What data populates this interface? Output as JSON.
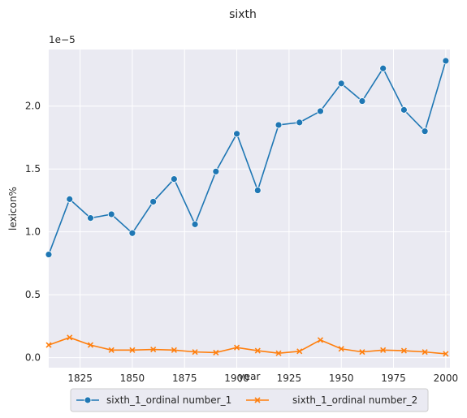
{
  "chart_data": {
    "type": "line",
    "title": "sixth",
    "xlabel": "year",
    "ylabel": "lexicon%",
    "y_offset_label": "1e−5",
    "xlim": [
      1810,
      2002
    ],
    "ylim": [
      -0.08,
      2.45
    ],
    "x_ticks": [
      1825,
      1850,
      1875,
      1900,
      1925,
      1950,
      1975,
      2000
    ],
    "x_tick_labels": [
      "1825",
      "1850",
      "1875",
      "1900",
      "1925",
      "1950",
      "1975",
      "2000"
    ],
    "y_ticks": [
      0.0,
      0.5,
      1.0,
      1.5,
      2.0
    ],
    "y_tick_labels": [
      "0.0",
      "0.5",
      "1.0",
      "1.5",
      "2.0"
    ],
    "grid": true,
    "legend_position": "bottom-center",
    "x": [
      1810,
      1820,
      1830,
      1840,
      1850,
      1860,
      1870,
      1880,
      1890,
      1900,
      1910,
      1920,
      1930,
      1940,
      1950,
      1960,
      1970,
      1980,
      1990,
      2000
    ],
    "series": [
      {
        "name": "sixth_1_ordinal number_1",
        "color": "#1f77b4",
        "marker": "circle",
        "values": [
          0.82,
          1.26,
          1.11,
          1.14,
          0.99,
          1.24,
          1.42,
          1.06,
          1.48,
          1.78,
          1.33,
          1.85,
          1.87,
          1.96,
          2.18,
          2.04,
          2.3,
          1.97,
          1.8,
          2.36
        ]
      },
      {
        "name": "sixth_1_ordinal number_2",
        "color": "#ff7f0e",
        "marker": "x",
        "values": [
          0.1,
          0.16,
          0.1,
          0.06,
          0.06,
          0.065,
          0.06,
          0.045,
          0.04,
          0.08,
          0.055,
          0.035,
          0.05,
          0.14,
          0.07,
          0.045,
          0.06,
          0.055,
          0.045,
          0.03
        ]
      }
    ]
  }
}
